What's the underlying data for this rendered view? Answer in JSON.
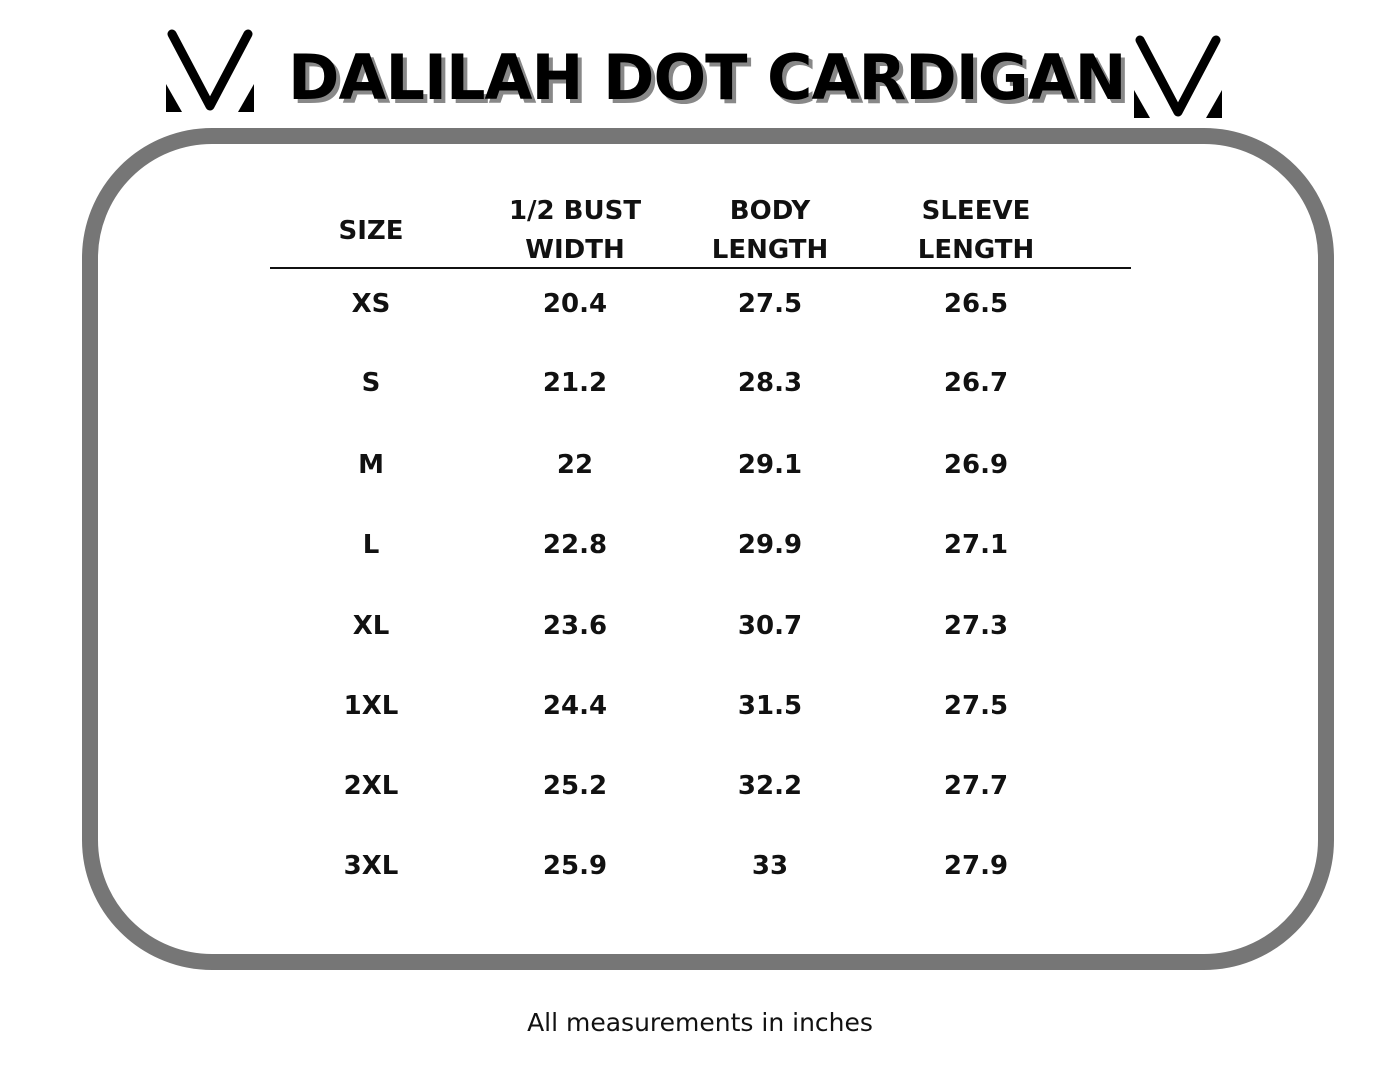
{
  "title": "DALILAH DOT CARDIGAN",
  "logo": {
    "icon": "v-logo-icon"
  },
  "colors": {
    "frame": "#767676",
    "title_shadow": "#888888"
  },
  "table": {
    "headers": [
      [
        "SIZE"
      ],
      [
        "1/2 BUST",
        "WIDTH"
      ],
      [
        "BODY",
        "LENGTH"
      ],
      [
        "SLEEVE",
        "LENGTH"
      ]
    ],
    "rows": [
      [
        "XS",
        "20.4",
        "27.5",
        "26.5"
      ],
      [
        "S",
        "21.2",
        "28.3",
        "26.7"
      ],
      [
        "M",
        "22",
        "29.1",
        "26.9"
      ],
      [
        "L",
        "22.8",
        "29.9",
        "27.1"
      ],
      [
        "XL",
        "23.6",
        "30.7",
        "27.3"
      ],
      [
        "1XL",
        "24.4",
        "31.5",
        "27.5"
      ],
      [
        "2XL",
        "25.2",
        "32.2",
        "27.7"
      ],
      [
        "3XL",
        "25.9",
        "33",
        "27.9"
      ]
    ]
  },
  "footer": "All measurements in inches"
}
